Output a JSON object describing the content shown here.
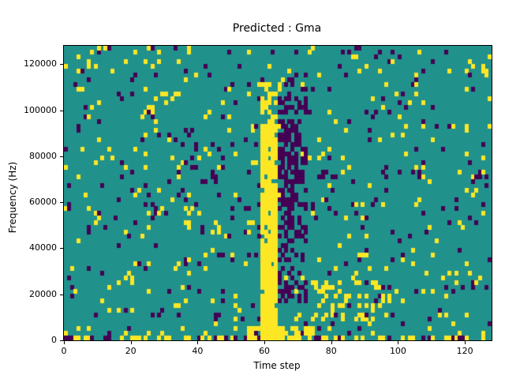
{
  "chart_data": {
    "type": "heatmap",
    "title": "Predicted : Gma",
    "xlabel": "Time step",
    "ylabel": "Frequency (Hz)",
    "x_range": [
      0,
      128
    ],
    "y_range": [
      0,
      128000
    ],
    "grid_size": {
      "cols": 128,
      "rows": 64
    },
    "x_ticks": [
      0,
      20,
      40,
      60,
      80,
      100,
      120
    ],
    "y_ticks": [
      0,
      20000,
      40000,
      60000,
      80000,
      100000,
      120000
    ],
    "colormap": {
      "low": "#440154",
      "mid": "#21918c",
      "high": "#fde725"
    },
    "background_value": 1,
    "legend": "none",
    "grid": false,
    "noise": {
      "seed": 7,
      "purple_density": 0.035,
      "yellow_density": 0.04
    },
    "features": [
      {
        "name": "bottom-activity-yellow",
        "t": [
          0,
          128
        ],
        "f": [
          0,
          2000
        ],
        "value": 2,
        "density": 0.35
      },
      {
        "name": "bottom-activity-purple",
        "t": [
          0,
          128
        ],
        "f": [
          0,
          2000
        ],
        "value": 0,
        "density": 0.15
      },
      {
        "name": "mid-right-yellow-cluster",
        "t": [
          75,
          100
        ],
        "f": [
          8000,
          26000
        ],
        "value": 2,
        "density": 0.22
      },
      {
        "name": "purple-column-cluster",
        "t": [
          64,
          73
        ],
        "f": [
          15000,
          115000
        ],
        "value": 0,
        "density": 0.3
      },
      {
        "name": "purple-core",
        "t": [
          64,
          70
        ],
        "f": [
          45000,
          95000
        ],
        "value": 0,
        "density": 0.5
      },
      {
        "name": "yellow-band-upper",
        "t": [
          59,
          65
        ],
        "f": [
          90000,
          112000
        ],
        "value": 2,
        "density": 0.45
      },
      {
        "name": "yellow-band-bottom",
        "t": [
          55,
          75
        ],
        "f": [
          0,
          6000
        ],
        "value": 2,
        "density": 0.55
      },
      {
        "name": "yellow-band-core",
        "t": [
          59,
          64
        ],
        "f": [
          0,
          92000
        ],
        "value": 2,
        "density": 0.92
      }
    ]
  }
}
